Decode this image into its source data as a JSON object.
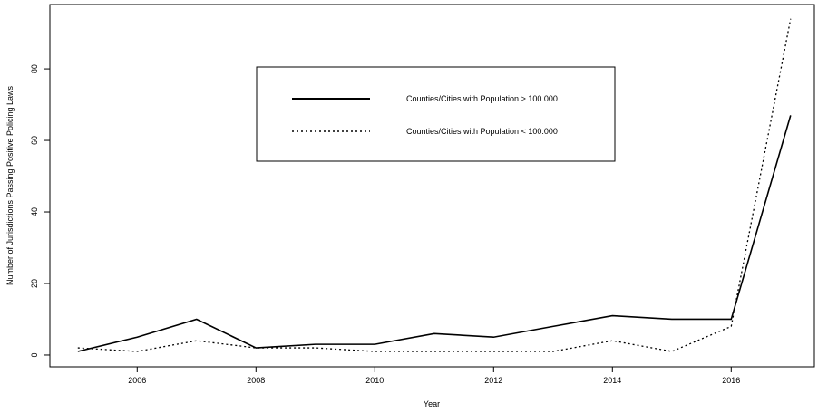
{
  "chart_data": {
    "type": "line",
    "x_label": "Year",
    "y_label": "Number of Jurisdictions Passing Positive Policing Laws",
    "x": [
      2005,
      2006,
      2007,
      2008,
      2009,
      2010,
      2011,
      2012,
      2013,
      2014,
      2015,
      2016,
      2017
    ],
    "series": [
      {
        "name": "Counties/Cities with Population > 100.000",
        "color": "#000000",
        "dash": "solid",
        "values": [
          1,
          5,
          10,
          2,
          3,
          3,
          6,
          5,
          8,
          11,
          10,
          10,
          67
        ]
      },
      {
        "name": "Counties/Cities with Population < 100.000",
        "color": "#000000",
        "dash": "dotted",
        "values": [
          2,
          1,
          4,
          2,
          2,
          1,
          1,
          1,
          1,
          4,
          1,
          8,
          94
        ]
      }
    ],
    "xlim": [
      2004.53,
      2017.4
    ],
    "ylim": [
      -3.3,
      98
    ],
    "xticks": [
      2006,
      2008,
      2010,
      2012,
      2014,
      2016
    ],
    "yticks": [
      0,
      20,
      40,
      60,
      80
    ]
  }
}
